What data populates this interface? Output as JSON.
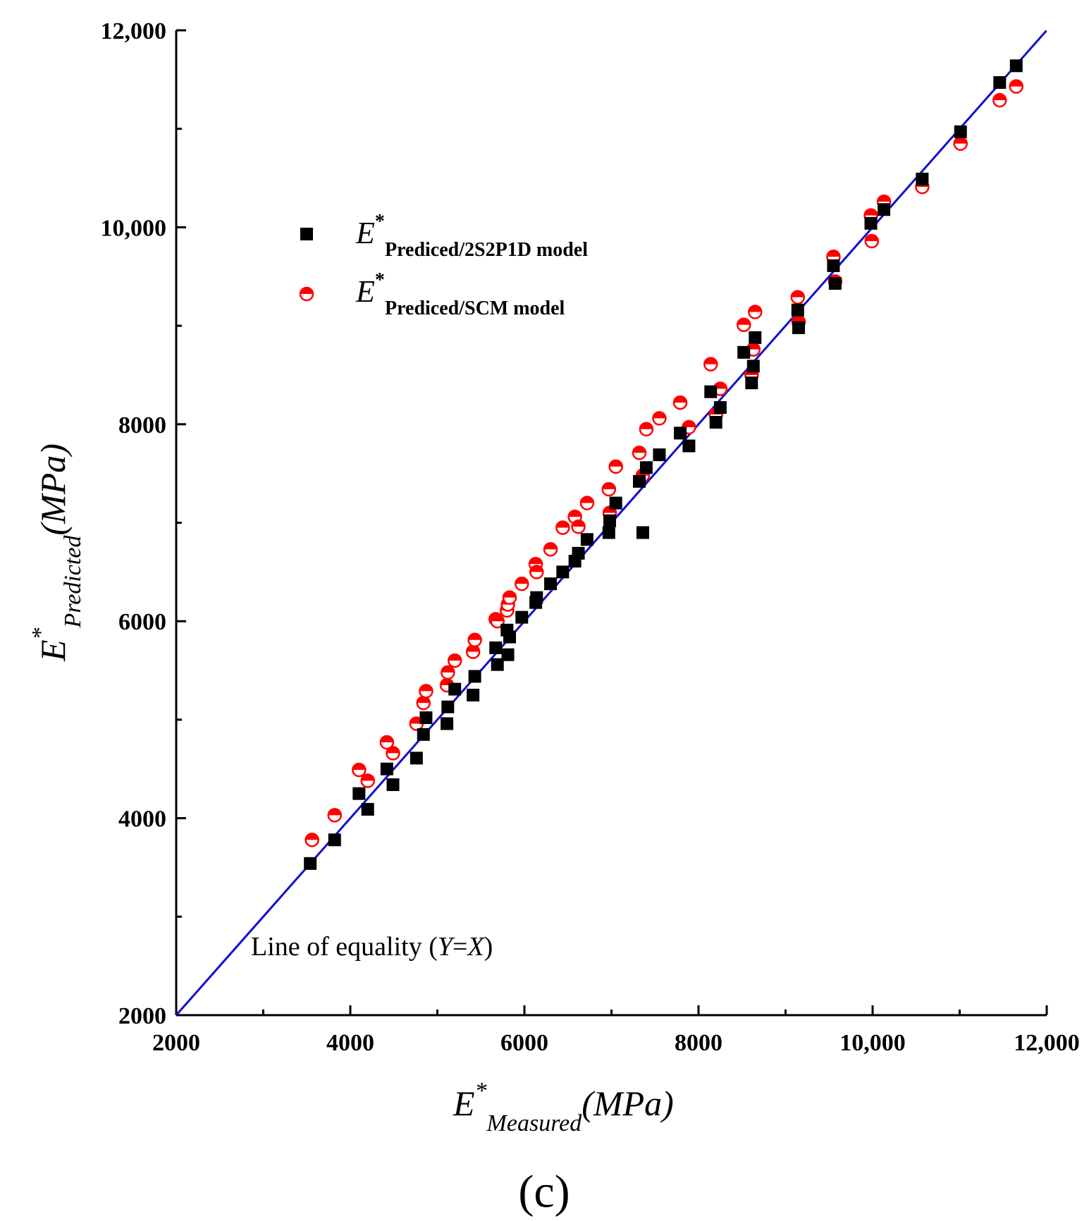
{
  "chart_data": {
    "type": "scatter",
    "panel_label": "(c)",
    "xlabel": {
      "main": "E",
      "sup": "*",
      "sub": "Measured",
      "unit": "(MPa)"
    },
    "ylabel": {
      "main": "E",
      "sup": "*",
      "sub": "Predicted",
      "unit": "(MPa)"
    },
    "xlim": [
      2000,
      12000
    ],
    "ylim": [
      2000,
      12000
    ],
    "x_ticks": [
      {
        "value": 2000,
        "label": "2000"
      },
      {
        "value": 4000,
        "label": "4000"
      },
      {
        "value": 6000,
        "label": "6000"
      },
      {
        "value": 8000,
        "label": "8000"
      },
      {
        "value": 10000,
        "label": "10,000"
      },
      {
        "value": 12000,
        "label": "12,000"
      }
    ],
    "y_ticks": [
      {
        "value": 2000,
        "label": "2000"
      },
      {
        "value": 4000,
        "label": "4000"
      },
      {
        "value": 6000,
        "label": "6000"
      },
      {
        "value": 8000,
        "label": "8000"
      },
      {
        "value": 10000,
        "label": "10,000"
      },
      {
        "value": 12000,
        "label": "12,000"
      }
    ],
    "x_minor_ticks": [
      3000,
      5000,
      7000,
      9000,
      11000
    ],
    "y_minor_ticks": [
      3000,
      5000,
      7000,
      9000,
      11000
    ],
    "equality_line": {
      "label_prefix": "Line of equality (",
      "label_var1": "Y",
      "label_eq": "=",
      "label_var2": "X",
      "label_suffix": ")",
      "color": "#1010d0",
      "from": [
        2000,
        2000
      ],
      "to": [
        12000,
        12000
      ]
    },
    "legend_placement": "top-left",
    "series": [
      {
        "name": "2S2P1D",
        "legend_main": "E",
        "legend_sup": "*",
        "legend_sub": "Prediced/2S2P1D model",
        "marker": "square",
        "color": "#000000",
        "points": [
          [
            3540,
            3540
          ],
          [
            3820,
            3780
          ],
          [
            4100,
            4250
          ],
          [
            4200,
            4090
          ],
          [
            4420,
            4500
          ],
          [
            4490,
            4340
          ],
          [
            4760,
            4610
          ],
          [
            4840,
            4850
          ],
          [
            4870,
            5020
          ],
          [
            5110,
            4960
          ],
          [
            5120,
            5130
          ],
          [
            5200,
            5310
          ],
          [
            5410,
            5250
          ],
          [
            5430,
            5440
          ],
          [
            5670,
            5730
          ],
          [
            5690,
            5560
          ],
          [
            5800,
            5910
          ],
          [
            5810,
            5660
          ],
          [
            5830,
            5840
          ],
          [
            5970,
            6040
          ],
          [
            6130,
            6190
          ],
          [
            6140,
            6240
          ],
          [
            6300,
            6380
          ],
          [
            6440,
            6500
          ],
          [
            6580,
            6610
          ],
          [
            6620,
            6690
          ],
          [
            6720,
            6830
          ],
          [
            6970,
            6900
          ],
          [
            6980,
            7020
          ],
          [
            7050,
            7200
          ],
          [
            7320,
            7420
          ],
          [
            7360,
            6900
          ],
          [
            7400,
            7560
          ],
          [
            7550,
            7690
          ],
          [
            7790,
            7910
          ],
          [
            7890,
            7780
          ],
          [
            8140,
            8330
          ],
          [
            8200,
            8020
          ],
          [
            8250,
            8170
          ],
          [
            8520,
            8730
          ],
          [
            8610,
            8420
          ],
          [
            8630,
            8590
          ],
          [
            8650,
            8880
          ],
          [
            9140,
            9160
          ],
          [
            9150,
            8980
          ],
          [
            9550,
            9610
          ],
          [
            9570,
            9430
          ],
          [
            9980,
            10040
          ],
          [
            10130,
            10180
          ],
          [
            10570,
            10490
          ],
          [
            11010,
            10970
          ],
          [
            11460,
            11470
          ],
          [
            11650,
            11640
          ]
        ]
      },
      {
        "name": "SCM",
        "legend_main": "E",
        "legend_sup": "*",
        "legend_sub": "Prediced/SCM model",
        "marker": "half-filled-circle",
        "color": "#ff0000",
        "points": [
          [
            3560,
            3780
          ],
          [
            3820,
            4030
          ],
          [
            4100,
            4490
          ],
          [
            4200,
            4380
          ],
          [
            4420,
            4770
          ],
          [
            4490,
            4660
          ],
          [
            4760,
            4960
          ],
          [
            4840,
            5170
          ],
          [
            4870,
            5290
          ],
          [
            5110,
            5350
          ],
          [
            5120,
            5480
          ],
          [
            5200,
            5600
          ],
          [
            5410,
            5690
          ],
          [
            5430,
            5810
          ],
          [
            5670,
            6020
          ],
          [
            5690,
            6000
          ],
          [
            5800,
            6110
          ],
          [
            5810,
            6170
          ],
          [
            5830,
            6240
          ],
          [
            5970,
            6380
          ],
          [
            6130,
            6580
          ],
          [
            6140,
            6500
          ],
          [
            6300,
            6730
          ],
          [
            6440,
            6950
          ],
          [
            6580,
            7060
          ],
          [
            6620,
            6960
          ],
          [
            6720,
            7200
          ],
          [
            6970,
            7340
          ],
          [
            6980,
            7100
          ],
          [
            7050,
            7570
          ],
          [
            7320,
            7710
          ],
          [
            7360,
            7480
          ],
          [
            7400,
            7950
          ],
          [
            7550,
            8060
          ],
          [
            7790,
            8220
          ],
          [
            7890,
            7970
          ],
          [
            8140,
            8610
          ],
          [
            8200,
            8100
          ],
          [
            8250,
            8360
          ],
          [
            8520,
            9010
          ],
          [
            8610,
            8500
          ],
          [
            8630,
            8760
          ],
          [
            8650,
            9140
          ],
          [
            9140,
            9290
          ],
          [
            9150,
            9040
          ],
          [
            9550,
            9700
          ],
          [
            9570,
            9450
          ],
          [
            9980,
            10120
          ],
          [
            9990,
            9860
          ],
          [
            10130,
            10260
          ],
          [
            10570,
            10410
          ],
          [
            11010,
            10850
          ],
          [
            11460,
            11290
          ],
          [
            11650,
            11430
          ]
        ]
      }
    ]
  }
}
